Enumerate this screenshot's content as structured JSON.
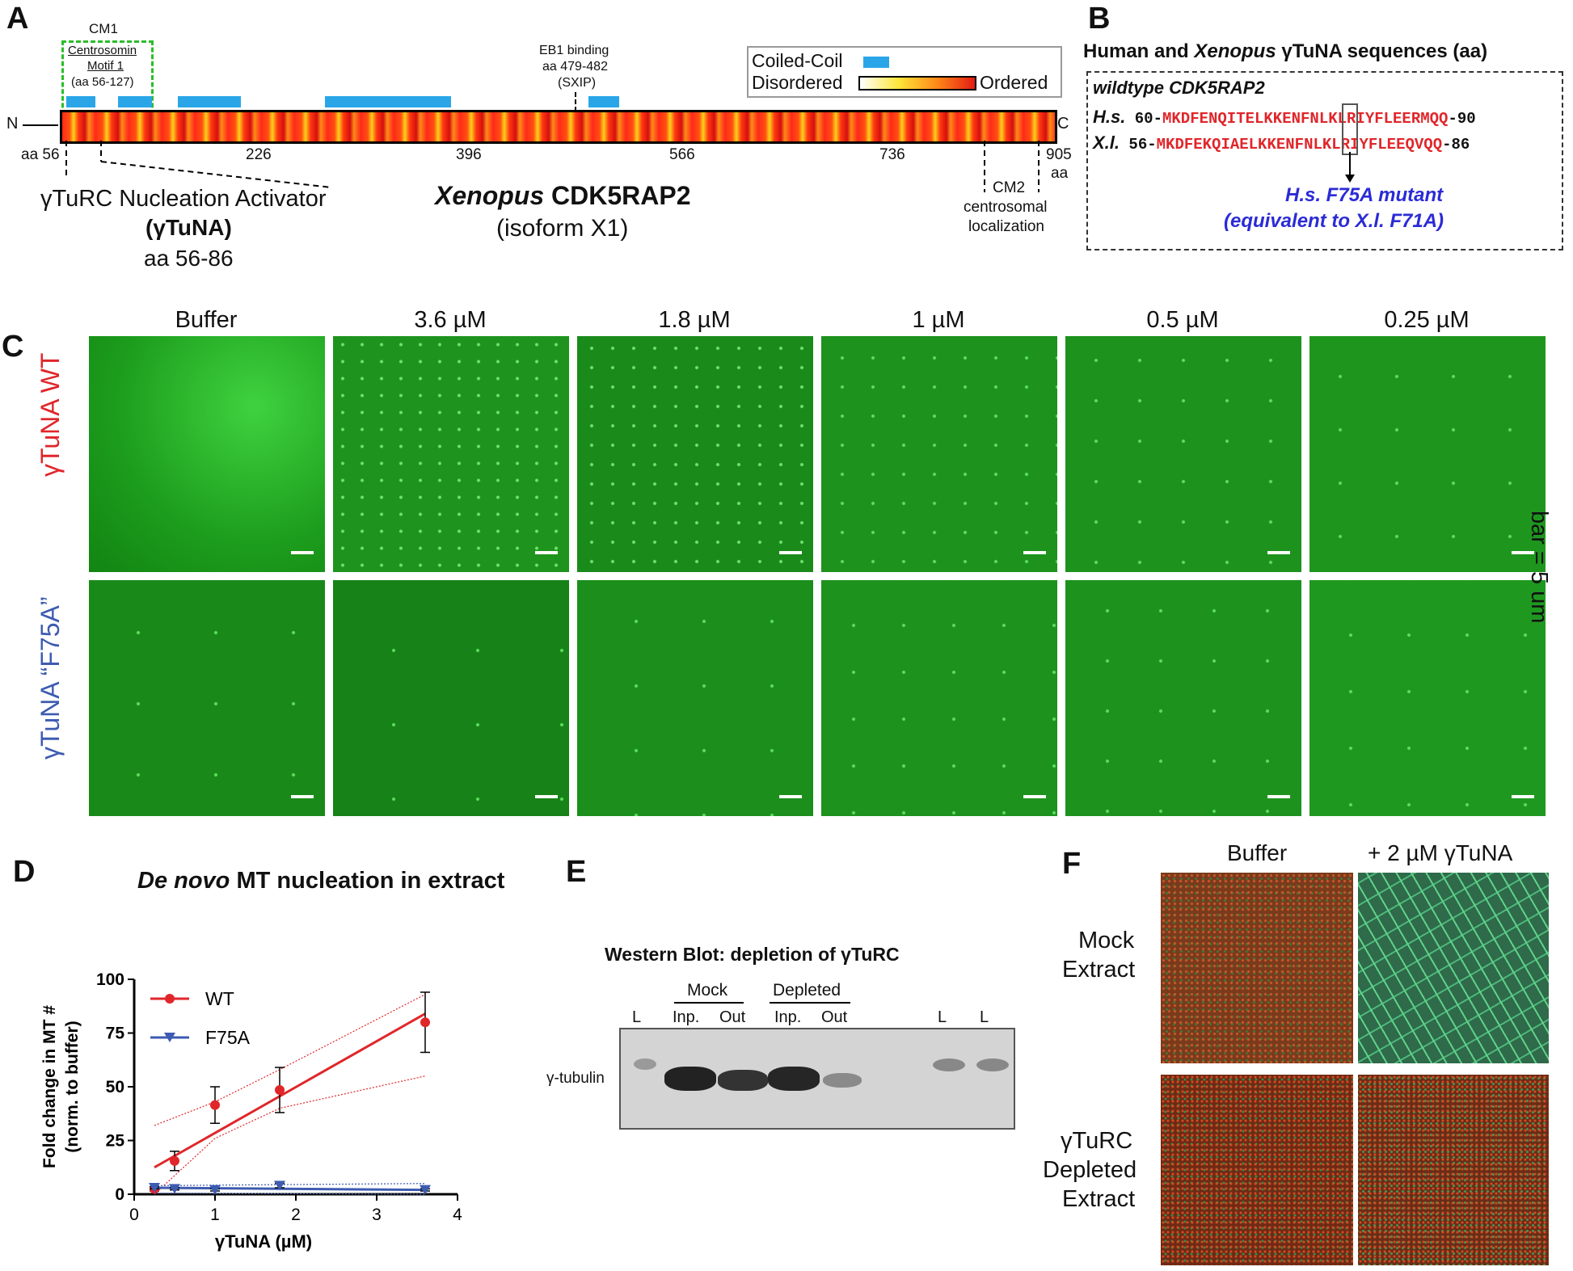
{
  "panels": {
    "A": "A",
    "B": "B",
    "C": "C",
    "D": "D",
    "E": "E",
    "F": "F"
  },
  "panelA": {
    "cm1_title": "CM1",
    "cm1_lines": [
      "Centrosomin",
      "Motif 1",
      "(aa 56-127)"
    ],
    "eb1_lines": [
      "EB1 binding",
      "aa 479-482",
      "(SXIP)"
    ],
    "legend_cc": "Coiled-Coil",
    "legend_disordered": "Disordered",
    "legend_ordered": "Ordered",
    "n_term": "N",
    "c_term": "C",
    "ticks": [
      "aa 56",
      "226",
      "396",
      "566",
      "736",
      "905"
    ],
    "aa_label": "aa",
    "gamma_label_line1": "γTuRC Nucleation Activator",
    "gamma_label_line2": "(γTuNA)",
    "gamma_label_line3": "aa 56-86",
    "protein_name_italic": "Xenopus",
    "protein_name": "CDK5RAP2",
    "isoform": "(isoform X1)",
    "cm2_lines": [
      "CM2",
      "centrosomal",
      "localization"
    ]
  },
  "panelB": {
    "title_pre": "Human and ",
    "title_italic": "Xenopus",
    "title_post": " γTuNA sequences (aa)",
    "wildtype": "wildtype CDK5RAP2",
    "hs_label": "H.s.",
    "hs_start": "60-",
    "hs_seq": "MKDFENQITELKKENFNLKLRIYFLEERMQQ",
    "hs_end": "-90",
    "xl_label": "X.l.",
    "xl_start": "56-",
    "xl_seq": "MKDFEKQIAELKKENFNLKLRIYFLEEQVQQ",
    "xl_end": "-86",
    "mutant_line1": "H.s. F75A mutant",
    "mutant_line2": "(equivalent to X.l. F71A)"
  },
  "panelC": {
    "columns": [
      "Buffer",
      "3.6 µM",
      "1.8 µM",
      "1 µM",
      "0.5 µM",
      "0.25 µM"
    ],
    "row1": "γTuNA WT",
    "row2": "γTuNA “F75A”",
    "scalebar": "bar = 5 um"
  },
  "panelD": {
    "title_italic": "De novo",
    "title_rest": " MT nucleation in extract",
    "ylabel_line1": "Fold change in MT #",
    "ylabel_line2": "(norm. to buffer)",
    "xlabel": "γTuNA (µM)"
  },
  "chart_data": {
    "type": "scatter",
    "x": [
      0.25,
      0.5,
      1,
      1.8,
      3.6
    ],
    "xlim": [
      0,
      4
    ],
    "ylim": [
      0,
      100
    ],
    "xticks": [
      "0",
      "1",
      "2",
      "3",
      "4"
    ],
    "yticks": [
      "0",
      "25",
      "50",
      "75",
      "100"
    ],
    "series": [
      {
        "name": "WT",
        "color": "#e0262a",
        "values": [
          2.5,
          15.5,
          41.5,
          48.5,
          80
        ],
        "errors": [
          1,
          4.5,
          8.5,
          10.5,
          14
        ],
        "fit": [
          [
            0.25,
            12.5
          ],
          [
            3.6,
            84
          ]
        ],
        "ci_upper": [
          [
            0.25,
            32
          ],
          [
            1,
            43
          ],
          [
            1.8,
            58
          ],
          [
            3.6,
            93
          ]
        ],
        "ci_lower": [
          [
            0.25,
            -6
          ],
          [
            1,
            26
          ],
          [
            1.8,
            40
          ],
          [
            3.6,
            55
          ]
        ]
      },
      {
        "name": "F75A",
        "color": "#3d5bb0",
        "values": [
          3,
          2.5,
          2,
          4,
          2
        ],
        "errors": [
          0.5,
          0.5,
          0.5,
          1,
          0.5
        ],
        "fit": [
          [
            0.25,
            3
          ],
          [
            3.6,
            2
          ]
        ],
        "ci_upper": [
          [
            0.25,
            4
          ],
          [
            3.6,
            5
          ]
        ],
        "ci_lower": [
          [
            0.25,
            0.5
          ],
          [
            3.6,
            0
          ]
        ]
      }
    ]
  },
  "panelE": {
    "title": "Western Blot: depletion of γTuRC",
    "mock": "Mock",
    "depleted": "Depleted",
    "lane_labels": [
      "L",
      "Inp.",
      "Out",
      "Inp.",
      "Out",
      "L",
      "L"
    ],
    "band_label": "γ-tubulin"
  },
  "panelF": {
    "col1": "Buffer",
    "col2": "+ 2 µM γTuNA",
    "row1_line1": "Mock",
    "row1_line2": "Extract",
    "row2_line1": "γTuRC",
    "row2_line2": "Depleted",
    "row2_line3": "Extract"
  }
}
